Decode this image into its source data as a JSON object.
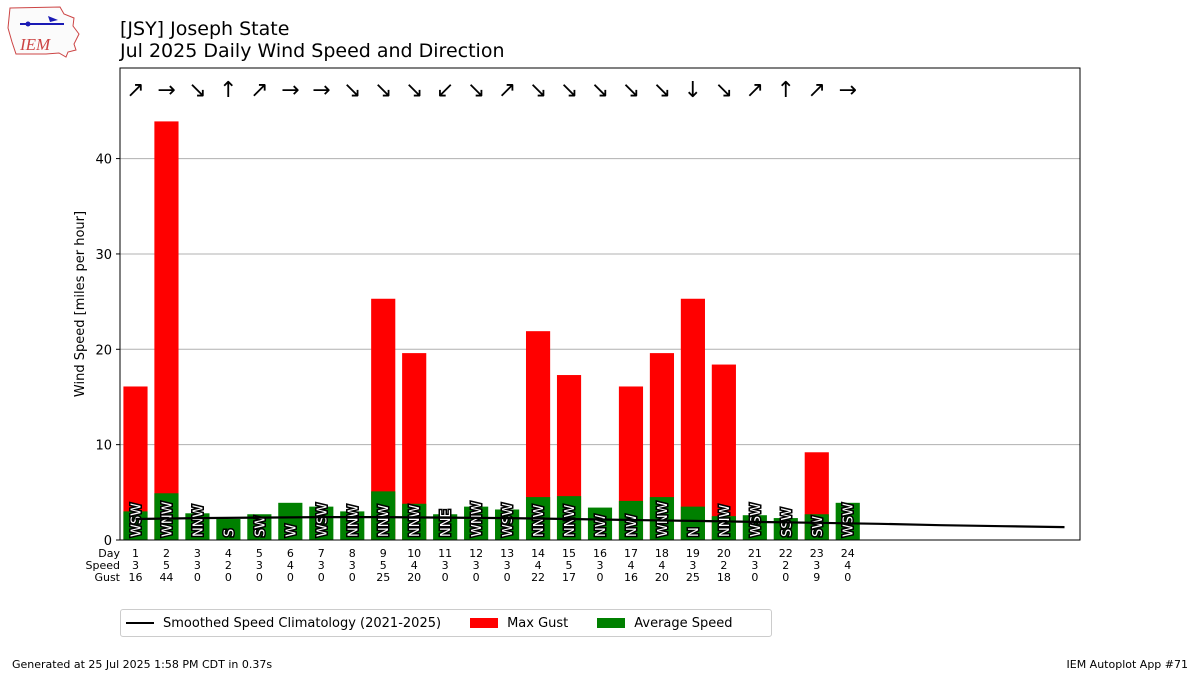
{
  "header": {
    "title_line1": "[JSY] Joseph State",
    "title_line2": "Jul 2025 Daily Wind Speed and Direction",
    "logo_text": "IEM"
  },
  "footer": {
    "generated": "Generated at 25 Jul 2025 1:58 PM CDT in 0.37s",
    "app": "IEM Autoplot App #71"
  },
  "legend": {
    "climatology": "Smoothed Speed Climatology (2021-2025)",
    "max_gust": "Max Gust",
    "avg_speed": "Average Speed"
  },
  "colors": {
    "gust": "#ff0000",
    "speed": "#008000",
    "climatology": "#000000",
    "grid": "#b0b0b0"
  },
  "chart_data": {
    "type": "bar",
    "ylabel": "Wind Speed [miles per hour]",
    "ylim": [
      0,
      49.5
    ],
    "xlim": [
      0.5,
      31.5
    ],
    "yticks": [
      0,
      10,
      20,
      30,
      40
    ],
    "grid": true,
    "legend_position": "bottom-left, below the plot",
    "row_labels": [
      "Day",
      "Speed",
      "Gust"
    ],
    "days": [
      1,
      2,
      3,
      4,
      5,
      6,
      7,
      8,
      9,
      10,
      11,
      12,
      13,
      14,
      15,
      16,
      17,
      18,
      19,
      20,
      21,
      22,
      23,
      24
    ],
    "avg_speed": [
      3.0,
      4.9,
      2.8,
      2.2,
      2.7,
      3.9,
      3.5,
      3.0,
      5.1,
      3.8,
      2.7,
      3.5,
      3.2,
      4.5,
      4.6,
      3.4,
      4.1,
      4.5,
      3.5,
      2.5,
      2.6,
      2.3,
      2.7,
      3.9
    ],
    "max_gust": [
      16.1,
      43.9,
      0,
      0,
      0,
      0,
      0,
      0,
      25.3,
      19.6,
      0,
      0,
      0,
      21.9,
      17.3,
      0,
      16.1,
      19.6,
      25.3,
      18.4,
      0,
      0,
      9.2,
      0
    ],
    "direction": [
      "WSW",
      "WNW",
      "NNW",
      "S",
      "SW",
      "W",
      "WSW",
      "NNW",
      "NNW",
      "NNW",
      "NNE",
      "WNW",
      "WSW",
      "NNW",
      "NNW",
      "NW",
      "NW",
      "WNW",
      "N",
      "NNW",
      "WSW",
      "SSW",
      "SW",
      "WSW"
    ],
    "speed_label": [
      "3",
      "5",
      "3",
      "2",
      "3",
      "4",
      "3",
      "3",
      "5",
      "4",
      "3",
      "3",
      "3",
      "4",
      "5",
      "3",
      "4",
      "4",
      "3",
      "2",
      "3",
      "2",
      "3",
      "4"
    ],
    "gust_label": [
      "16",
      "44",
      "0",
      "0",
      "0",
      "0",
      "0",
      "0",
      "25",
      "20",
      "0",
      "0",
      "0",
      "22",
      "17",
      "0",
      "16",
      "20",
      "25",
      "18",
      "0",
      "0",
      "9",
      "0"
    ],
    "arrows": [
      "↗",
      "→",
      "↘",
      "↑",
      "↗",
      "→",
      "→",
      "↘",
      "↘",
      "↘",
      "↙",
      "↘",
      "↗",
      "↘",
      "↘",
      "↘",
      "↘",
      "↘",
      "↓",
      "↘",
      "↗",
      "↑",
      "↗",
      "→"
    ],
    "climatology": {
      "x": [
        1,
        3,
        5,
        7,
        9,
        11,
        13,
        15,
        17,
        19,
        21,
        23,
        25,
        27,
        29,
        31
      ],
      "y": [
        2.2,
        2.3,
        2.35,
        2.4,
        2.4,
        2.35,
        2.3,
        2.2,
        2.1,
        2.0,
        1.9,
        1.8,
        1.7,
        1.55,
        1.45,
        1.35
      ]
    }
  }
}
